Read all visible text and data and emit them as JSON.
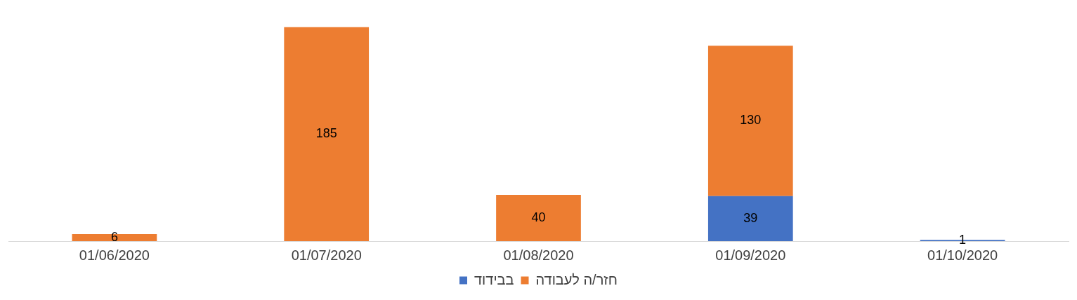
{
  "chart_data": {
    "type": "bar",
    "stacked": true,
    "categories": [
      "01/06/2020",
      "01/07/2020",
      "01/08/2020",
      "01/09/2020",
      "01/10/2020"
    ],
    "series": [
      {
        "name": "בבידוד",
        "color": "#4472c4",
        "values": [
          null,
          null,
          null,
          39,
          1
        ]
      },
      {
        "name": "חזר/ה לעבודה",
        "color": "#ed7d31",
        "values": [
          6,
          185,
          40,
          130,
          null
        ]
      }
    ],
    "data_labels": true,
    "legend": "bottom",
    "grid": false
  }
}
